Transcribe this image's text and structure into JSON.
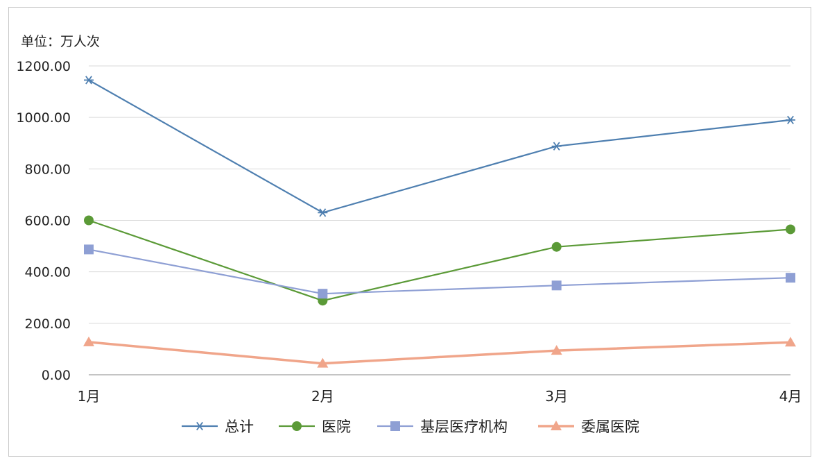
{
  "chart_data": {
    "type": "line",
    "unit_label": "单位：万人次",
    "categories": [
      "1月",
      "2月",
      "3月",
      "4月"
    ],
    "ylim": [
      0,
      1200
    ],
    "yticks": [
      "0.00",
      "200.00",
      "400.00",
      "600.00",
      "800.00",
      "1000.00",
      "1200.00"
    ],
    "grid": true,
    "legend_position": "bottom",
    "series": [
      {
        "name": "总计",
        "color": "#4e7fb0",
        "marker": "asterisk",
        "values": [
          1145,
          630,
          888,
          990
        ]
      },
      {
        "name": "医院",
        "color": "#5b9a37",
        "marker": "circle",
        "values": [
          600,
          288,
          497,
          565
        ]
      },
      {
        "name": "基层医疗机构",
        "color": "#8e9fd4",
        "marker": "square",
        "values": [
          487,
          315,
          347,
          377
        ]
      },
      {
        "name": "委属医院",
        "color": "#f0a58a",
        "marker": "triangle",
        "values": [
          127,
          44,
          94,
          126
        ]
      }
    ]
  }
}
